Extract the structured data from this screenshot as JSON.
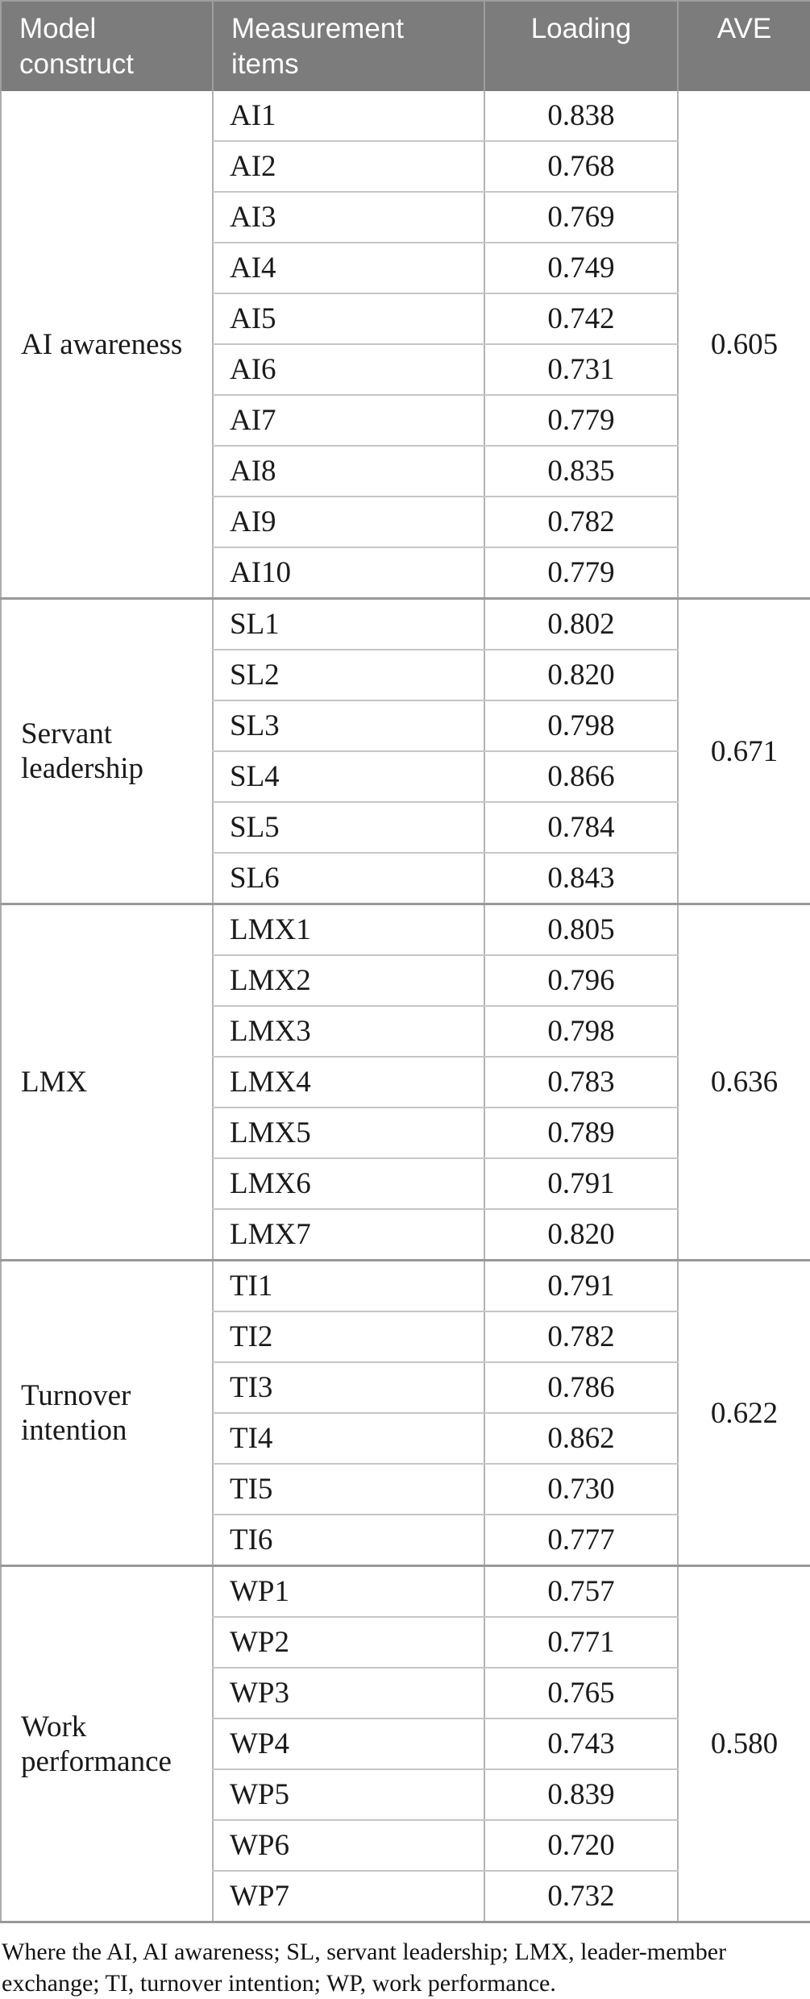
{
  "table": {
    "headers": {
      "model_construct": "Model construct",
      "measurement_items": "Measurement items",
      "loading": "Loading",
      "ave": "AVE"
    },
    "groups": [
      {
        "construct": "AI awareness",
        "ave": "0.605",
        "items": [
          {
            "item": "AI1",
            "loading": "0.838"
          },
          {
            "item": "AI2",
            "loading": "0.768"
          },
          {
            "item": "AI3",
            "loading": "0.769"
          },
          {
            "item": "AI4",
            "loading": "0.749"
          },
          {
            "item": "AI5",
            "loading": "0.742"
          },
          {
            "item": "AI6",
            "loading": "0.731"
          },
          {
            "item": "AI7",
            "loading": "0.779"
          },
          {
            "item": "AI8",
            "loading": "0.835"
          },
          {
            "item": "AI9",
            "loading": "0.782"
          },
          {
            "item": "AI10",
            "loading": "0.779"
          }
        ]
      },
      {
        "construct": "Servant leadership",
        "ave": "0.671",
        "items": [
          {
            "item": "SL1",
            "loading": "0.802"
          },
          {
            "item": "SL2",
            "loading": "0.820"
          },
          {
            "item": "SL3",
            "loading": "0.798"
          },
          {
            "item": "SL4",
            "loading": "0.866"
          },
          {
            "item": "SL5",
            "loading": "0.784"
          },
          {
            "item": "SL6",
            "loading": "0.843"
          }
        ]
      },
      {
        "construct": "LMX",
        "ave": "0.636",
        "items": [
          {
            "item": "LMX1",
            "loading": "0.805"
          },
          {
            "item": "LMX2",
            "loading": "0.796"
          },
          {
            "item": "LMX3",
            "loading": "0.798"
          },
          {
            "item": "LMX4",
            "loading": "0.783"
          },
          {
            "item": "LMX5",
            "loading": "0.789"
          },
          {
            "item": "LMX6",
            "loading": "0.791"
          },
          {
            "item": "LMX7",
            "loading": "0.820"
          }
        ]
      },
      {
        "construct": "Turnover intention",
        "ave": "0.622",
        "items": [
          {
            "item": "TI1",
            "loading": "0.791"
          },
          {
            "item": "TI2",
            "loading": "0.782"
          },
          {
            "item": "TI3",
            "loading": "0.786"
          },
          {
            "item": "TI4",
            "loading": "0.862"
          },
          {
            "item": "TI5",
            "loading": "0.730"
          },
          {
            "item": "TI6",
            "loading": "0.777"
          }
        ]
      },
      {
        "construct": "Work performance",
        "ave": "0.580",
        "items": [
          {
            "item": "WP1",
            "loading": "0.757"
          },
          {
            "item": "WP2",
            "loading": "0.771"
          },
          {
            "item": "WP3",
            "loading": "0.765"
          },
          {
            "item": "WP4",
            "loading": "0.743"
          },
          {
            "item": "WP5",
            "loading": "0.839"
          },
          {
            "item": "WP6",
            "loading": "0.720"
          },
          {
            "item": "WP7",
            "loading": "0.732"
          }
        ]
      }
    ]
  },
  "footnote": "Where the AI, AI awareness; SL, servant leadership; LMX, leader-member exchange; TI, turnover intention; WP, work performance.",
  "colors": {
    "header_bg": "#7c7c7c",
    "header_text": "#ffffff",
    "body_text": "#1a1a1a",
    "row_line": "#c6c6c6",
    "column_line": "#b2b2b2",
    "group_line": "#999999"
  }
}
